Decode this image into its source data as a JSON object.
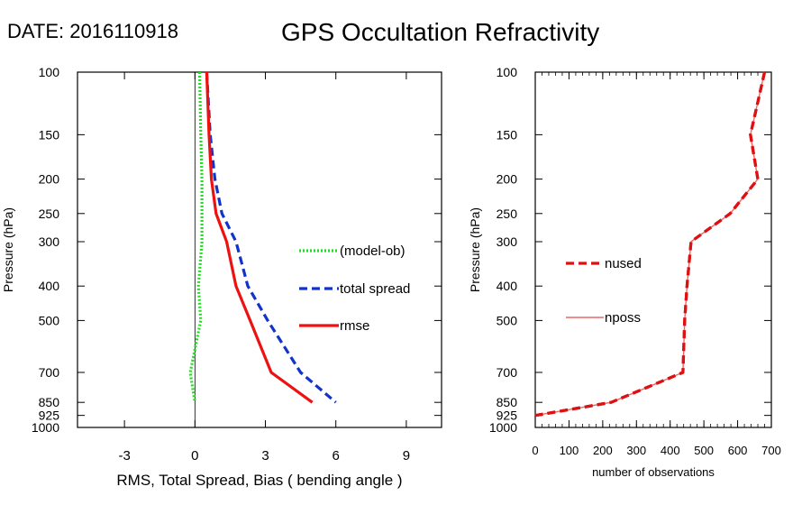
{
  "header": {
    "date_label": "DATE: 2016110918",
    "title": "GPS Occultation Refractivity"
  },
  "chart_data": [
    {
      "type": "line",
      "ylabel": "Pressure (hPa)",
      "xlabel": "RMS, Total Spread, Bias ( bending angle )",
      "y_scale": "log",
      "y_inverted": true,
      "ylim": [
        100,
        1000
      ],
      "xlim": [
        -5,
        10.5
      ],
      "yticks": [
        100,
        150,
        200,
        250,
        300,
        400,
        500,
        700,
        850,
        925,
        1000
      ],
      "xticks": [
        -3,
        0,
        3,
        6,
        9
      ],
      "zero_line": 0,
      "legend_position": "right-middle",
      "series": [
        {
          "name": "(model-ob)",
          "color": "#22dd22",
          "style": "dotted",
          "points": [
            [
              0.2,
              100
            ],
            [
              0.25,
              150
            ],
            [
              0.3,
              200
            ],
            [
              0.3,
              250
            ],
            [
              0.3,
              300
            ],
            [
              0.15,
              400
            ],
            [
              0.25,
              500
            ],
            [
              -0.2,
              700
            ],
            [
              0.0,
              850
            ]
          ]
        },
        {
          "name": "total spread",
          "color": "#1133cc",
          "style": "dashed",
          "points": [
            [
              0.5,
              100
            ],
            [
              0.65,
              150
            ],
            [
              0.85,
              200
            ],
            [
              1.15,
              250
            ],
            [
              1.75,
              300
            ],
            [
              2.25,
              400
            ],
            [
              3.1,
              500
            ],
            [
              4.5,
              700
            ],
            [
              6.0,
              850
            ]
          ]
        },
        {
          "name": "rmse",
          "color": "#ee1111",
          "style": "solid",
          "points": [
            [
              0.5,
              100
            ],
            [
              0.6,
              150
            ],
            [
              0.7,
              200
            ],
            [
              0.9,
              250
            ],
            [
              1.35,
              300
            ],
            [
              1.75,
              400
            ],
            [
              2.35,
              500
            ],
            [
              3.25,
              700
            ],
            [
              5.0,
              850
            ]
          ]
        }
      ]
    },
    {
      "type": "line",
      "ylabel": "Pressure (hPa)",
      "xlabel": "number of observations",
      "y_scale": "log",
      "y_inverted": true,
      "ylim": [
        100,
        1000
      ],
      "xlim": [
        0,
        700
      ],
      "yticks": [
        100,
        150,
        200,
        250,
        300,
        400,
        500,
        700,
        850,
        925,
        1000
      ],
      "xticks": [
        0,
        100,
        200,
        300,
        400,
        500,
        600,
        700
      ],
      "legend_position": "left-middle",
      "series": [
        {
          "name": "nused",
          "color": "#dd1111",
          "style": "dashed",
          "points": [
            [
              680,
              100
            ],
            [
              638,
              150
            ],
            [
              660,
              200
            ],
            [
              578,
              250
            ],
            [
              462,
              300
            ],
            [
              450,
              400
            ],
            [
              443,
              500
            ],
            [
              438,
              700
            ],
            [
              225,
              850
            ],
            [
              0,
              925
            ]
          ]
        },
        {
          "name": "nposs",
          "color": "#ee6666",
          "style": "solid",
          "points": [
            [
              680,
              100
            ],
            [
              638,
              150
            ],
            [
              660,
              200
            ],
            [
              578,
              250
            ],
            [
              462,
              300
            ],
            [
              450,
              400
            ],
            [
              443,
              500
            ],
            [
              438,
              700
            ],
            [
              225,
              850
            ],
            [
              0,
              925
            ]
          ]
        }
      ]
    }
  ]
}
